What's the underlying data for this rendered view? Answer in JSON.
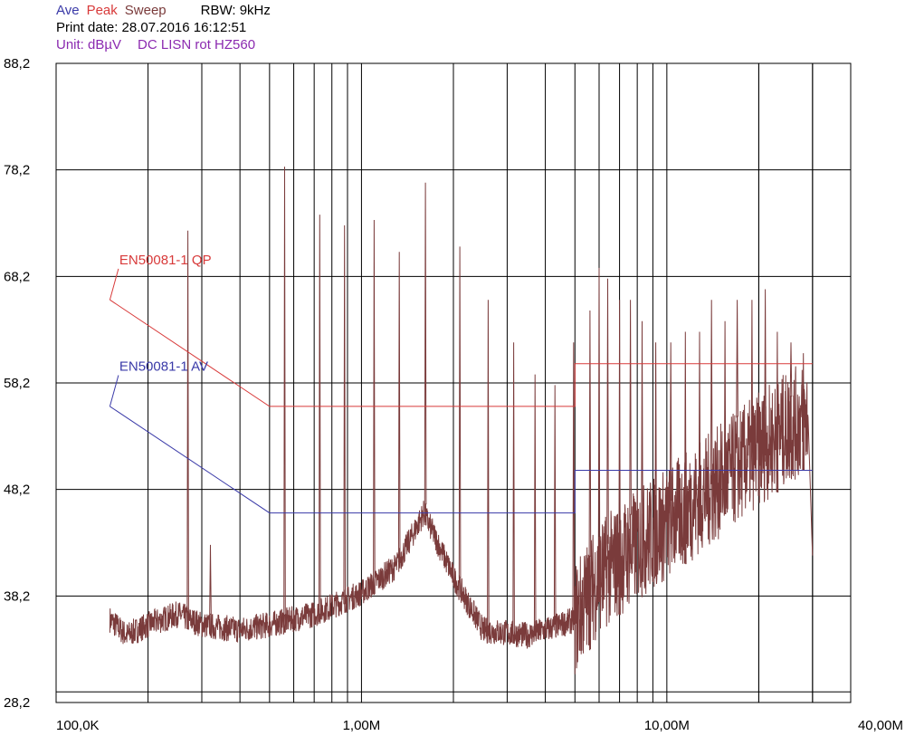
{
  "header": {
    "legend_ave": "Ave",
    "legend_peak": "Peak",
    "legend_sweep": "Sweep",
    "rbw": "RBW: 9kHz",
    "print_date": "Print date: 28.07.2016 16:12:51",
    "unit": "Unit: dBµV",
    "description": "DC LISN rot HZ560"
  },
  "colors": {
    "ave": "#3a3aa8",
    "peak": "#d83a3a",
    "sweep": "#7a3b3b",
    "grid": "#000000"
  },
  "chart_data": {
    "type": "line",
    "x_scale": "log",
    "xlim_hz": [
      100000,
      40000000
    ],
    "ylim": [
      28.2,
      88.2
    ],
    "y_ticks": [
      88.2,
      78.2,
      68.2,
      58.2,
      48.2,
      38.2,
      28.2
    ],
    "y_tick_labels": [
      "88,2",
      "78,2",
      "68,2",
      "58,2",
      "48,2",
      "38,2",
      "28,2"
    ],
    "x_tick_labels": [
      {
        "hz": 100000,
        "label": "100,0K"
      },
      {
        "hz": 1000000,
        "label": "1,00M"
      },
      {
        "hz": 10000000,
        "label": "10,00M"
      },
      {
        "hz": 40000000,
        "label": "40,00M"
      }
    ],
    "grid": true,
    "series": [
      {
        "name": "EN50081-1 QP",
        "kind": "limit",
        "color": "#d83a3a",
        "x": [
          150000,
          500000,
          500000,
          5000000,
          5000000,
          30000000
        ],
        "y": [
          66,
          56,
          56,
          56,
          60,
          60
        ],
        "label_at": {
          "hz": 160000,
          "db": 69.6
        }
      },
      {
        "name": "EN50081-1 AV",
        "kind": "limit",
        "color": "#3a3aa8",
        "x": [
          150000,
          500000,
          500000,
          5000000,
          5000000,
          30000000
        ],
        "y": [
          56,
          46,
          46,
          46,
          50,
          50
        ],
        "label_at": {
          "hz": 160000,
          "db": 59.6
        }
      },
      {
        "name": "Sweep",
        "kind": "measurement",
        "color": "#7a3b3b",
        "baseline": [
          [
            150000,
            36
          ],
          [
            170000,
            34.5
          ],
          [
            200000,
            35.5
          ],
          [
            250000,
            36.5
          ],
          [
            300000,
            35.5
          ],
          [
            400000,
            35
          ],
          [
            500000,
            35.5
          ],
          [
            700000,
            36.5
          ],
          [
            1000000,
            38.5
          ],
          [
            1300000,
            41
          ],
          [
            1600000,
            46
          ],
          [
            2000000,
            40
          ],
          [
            2500000,
            35
          ],
          [
            3500000,
            34.5
          ],
          [
            4500000,
            35.5
          ],
          [
            5000000,
            36
          ],
          [
            6000000,
            40
          ],
          [
            8000000,
            43
          ],
          [
            10000000,
            45
          ],
          [
            15000000,
            49
          ],
          [
            20000000,
            52
          ],
          [
            25000000,
            54
          ],
          [
            29000000,
            55
          ]
        ],
        "peaks": [
          [
            270000,
            72.5
          ],
          [
            320000,
            43
          ],
          [
            560000,
            78.5
          ],
          [
            730000,
            74
          ],
          [
            880000,
            73
          ],
          [
            1100000,
            73.5
          ],
          [
            1330000,
            70.5
          ],
          [
            1620000,
            77
          ],
          [
            2100000,
            71
          ],
          [
            2600000,
            66
          ],
          [
            3150000,
            62
          ],
          [
            3700000,
            59
          ],
          [
            4300000,
            58
          ],
          [
            4950000,
            62
          ],
          [
            5600000,
            65
          ],
          [
            6000000,
            69
          ],
          [
            6400000,
            68
          ],
          [
            7000000,
            66
          ],
          [
            7600000,
            66
          ],
          [
            8300000,
            64
          ],
          [
            9200000,
            62
          ],
          [
            10300000,
            62
          ],
          [
            11500000,
            63
          ],
          [
            12800000,
            63
          ],
          [
            14000000,
            66
          ],
          [
            15500000,
            64
          ],
          [
            17000000,
            66
          ],
          [
            19000000,
            66
          ],
          [
            21000000,
            67
          ],
          [
            23000000,
            63
          ],
          [
            25500000,
            62
          ],
          [
            28000000,
            61
          ]
        ],
        "end": {
          "hz": 30000000,
          "db": 42
        }
      }
    ]
  }
}
